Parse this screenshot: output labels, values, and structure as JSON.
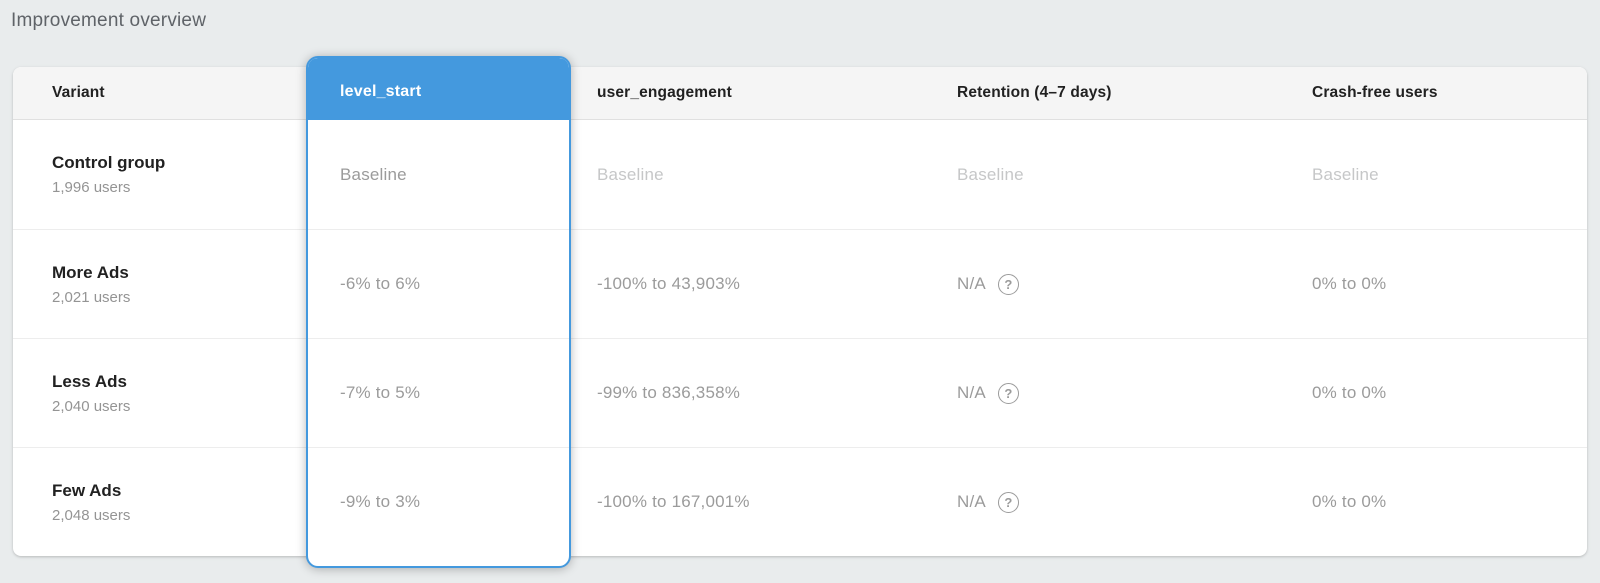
{
  "page": {
    "title": "Improvement overview"
  },
  "colors": {
    "accent_blue": "#4499de",
    "page_background": "#e9eced",
    "header_background": "#f5f5f5",
    "baseline_text": "#c6c7c8",
    "value_text": "#9b9b9b"
  },
  "icons": {
    "help": "?"
  },
  "table": {
    "columns": [
      {
        "label": "Variant"
      },
      {
        "label": "level_start",
        "selected": true
      },
      {
        "label": "user_engagement"
      },
      {
        "label": "Retention (4–7 days)"
      },
      {
        "label": "Crash-free users"
      }
    ],
    "rows": [
      {
        "name": "Control group",
        "users": "1,996 users",
        "level_start": "Baseline",
        "user_engagement": "Baseline",
        "retention": "Baseline",
        "crash_free": "Baseline"
      },
      {
        "name": "More Ads",
        "users": "2,021 users",
        "level_start": "-6% to 6%",
        "user_engagement": "-100% to 43,903%",
        "retention": "N/A",
        "crash_free": "0% to 0%"
      },
      {
        "name": "Less Ads",
        "users": "2,040 users",
        "level_start": "-7% to 5%",
        "user_engagement": "-99% to 836,358%",
        "retention": "N/A",
        "crash_free": "0% to 0%"
      },
      {
        "name": "Few Ads",
        "users": "2,048 users",
        "level_start": "-9% to 3%",
        "user_engagement": "-100% to 167,001%",
        "retention": "N/A",
        "crash_free": "0% to 0%"
      }
    ]
  }
}
